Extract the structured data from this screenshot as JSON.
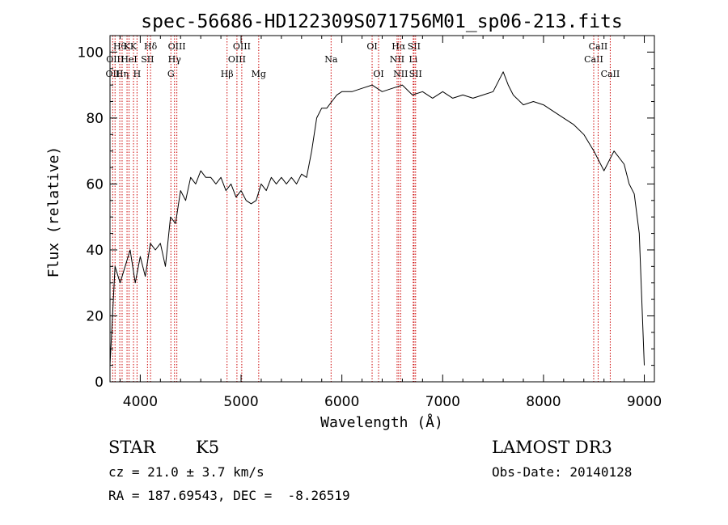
{
  "chart_data": {
    "type": "line",
    "title": "spec-56686-HD122309S071756M01_sp06-213.fits",
    "xlabel": "Wavelength (Å)",
    "ylabel": "Flux (relative)",
    "xlim": [
      3700,
      9100
    ],
    "ylim": [
      0,
      105
    ],
    "x_ticks": [
      4000,
      5000,
      6000,
      7000,
      8000,
      9000
    ],
    "y_ticks": [
      0,
      20,
      40,
      60,
      80,
      100
    ],
    "grid": false,
    "line_color": "#000000",
    "marker_color": "#cc0000",
    "series": [
      {
        "x": [
          3700,
          3750,
          3800,
          3850,
          3900,
          3950,
          4000,
          4050,
          4100,
          4150,
          4200,
          4250,
          4300,
          4350,
          4400,
          4450,
          4500,
          4550,
          4600,
          4650,
          4700,
          4750,
          4800,
          4850,
          4900,
          4950,
          5000,
          5050,
          5100,
          5150,
          5200,
          5250,
          5300,
          5350,
          5400,
          5450,
          5500,
          5550,
          5600,
          5650,
          5700,
          5750,
          5800,
          5850,
          5900,
          5950,
          6000,
          6100,
          6200,
          6300,
          6400,
          6500,
          6600,
          6700,
          6800,
          6900,
          7000,
          7100,
          7200,
          7300,
          7400,
          7500,
          7600,
          7650,
          7700,
          7800,
          7900,
          8000,
          8100,
          8200,
          8300,
          8400,
          8500,
          8600,
          8700,
          8800,
          8850,
          8900,
          8950,
          9000
        ],
        "y": [
          5,
          35,
          30,
          35,
          40,
          30,
          38,
          32,
          42,
          40,
          42,
          35,
          50,
          48,
          58,
          55,
          62,
          60,
          64,
          62,
          62,
          60,
          62,
          58,
          60,
          56,
          58,
          55,
          54,
          55,
          60,
          58,
          62,
          60,
          62,
          60,
          62,
          60,
          63,
          62,
          70,
          80,
          83,
          83,
          85,
          87,
          88,
          88,
          89,
          90,
          88,
          89,
          90,
          87,
          88,
          86,
          88,
          86,
          87,
          86,
          87,
          88,
          94,
          90,
          87,
          84,
          85,
          84,
          82,
          80,
          78,
          75,
          70,
          64,
          70,
          66,
          60,
          57,
          45,
          5
        ]
      }
    ],
    "line_markers": [
      {
        "x": 3727,
        "label": "OII",
        "row": 2
      },
      {
        "x": 3750,
        "label": "OIII",
        "row": 1
      },
      {
        "x": 3797,
        "label": "Hθ",
        "row": 0
      },
      {
        "x": 3820,
        "label": "Hη",
        "row": 2
      },
      {
        "x": 3869,
        "label": "K",
        "row": 0
      },
      {
        "x": 3889,
        "label": "HeI",
        "row": 1
      },
      {
        "x": 3933,
        "label": "K",
        "row": 0
      },
      {
        "x": 3968,
        "label": "H",
        "row": 2
      },
      {
        "x": 4072,
        "label": "SII",
        "row": 1
      },
      {
        "x": 4102,
        "label": "Hδ",
        "row": 0
      },
      {
        "x": 4304,
        "label": "G",
        "row": 2
      },
      {
        "x": 4340,
        "label": "Hγ",
        "row": 1
      },
      {
        "x": 4363,
        "label": "OIII",
        "row": 0
      },
      {
        "x": 4861,
        "label": "Hβ",
        "row": 2
      },
      {
        "x": 4959,
        "label": "OIII",
        "row": 1
      },
      {
        "x": 5007,
        "label": "OIII",
        "row": 0
      },
      {
        "x": 5175,
        "label": "Mg",
        "row": 2
      },
      {
        "x": 5893,
        "label": "Na",
        "row": 1
      },
      {
        "x": 6300,
        "label": "OI",
        "row": 0
      },
      {
        "x": 6364,
        "label": "OI",
        "row": 2
      },
      {
        "x": 6548,
        "label": "NII",
        "row": 1
      },
      {
        "x": 6563,
        "label": "Hα",
        "row": 0
      },
      {
        "x": 6583,
        "label": "NII",
        "row": 2
      },
      {
        "x": 6708,
        "label": "Li",
        "row": 1
      },
      {
        "x": 6716,
        "label": "SII",
        "row": 0
      },
      {
        "x": 6731,
        "label": "SII",
        "row": 2
      },
      {
        "x": 8498,
        "label": "CaII",
        "row": 1
      },
      {
        "x": 8542,
        "label": "CaII",
        "row": 0
      },
      {
        "x": 8662,
        "label": "CaII",
        "row": 2
      }
    ]
  },
  "info": {
    "object_class": "STAR",
    "subclass": "K5",
    "survey": "LAMOST DR3",
    "cz": "cz = 21.0 ± 3.7 km/s",
    "obs_date": "Obs-Date: 20140128",
    "coords": "RA = 187.69543, DEC =  -8.26519"
  }
}
